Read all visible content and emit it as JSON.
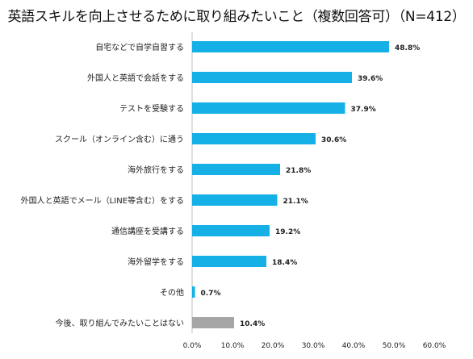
{
  "colors": {
    "bar": "#14b0e6",
    "bar_none": "#a6a6a6",
    "axis": "#bfbfbf"
  },
  "chart_data": {
    "type": "bar",
    "orientation": "horizontal",
    "title": "英語スキルを向上させるために取り組みたいこと（複数回答可）（N=412）",
    "categories": [
      "自宅などで自学自習する",
      "外国人と英語で会話をする",
      "テストを受験する",
      "スクール（オンライン含む）に通う",
      "海外旅行をする",
      "外国人と英語でメール（LINE等含む）をする",
      "通信講座を受講する",
      "海外留学をする",
      "その他",
      "今後、取り組んでみたいことはない"
    ],
    "values": [
      48.8,
      39.6,
      37.9,
      30.6,
      21.8,
      21.1,
      19.2,
      18.4,
      0.7,
      10.4
    ],
    "value_labels": [
      "48.8%",
      "39.6%",
      "37.9%",
      "30.6%",
      "21.8%",
      "21.1%",
      "19.2%",
      "18.4%",
      "0.7%",
      "10.4%"
    ],
    "xlim": [
      0,
      60
    ],
    "ticks": [
      "0.0%",
      "10.0%",
      "20.0%",
      "30.0%",
      "40.0%",
      "50.0%",
      "60.0%"
    ],
    "grid": false,
    "legend": "none"
  }
}
